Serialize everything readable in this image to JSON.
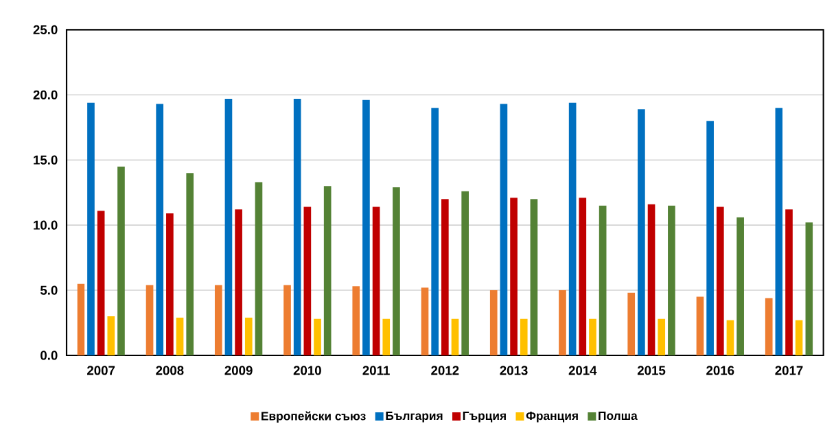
{
  "chart_data": {
    "type": "bar",
    "categories": [
      "2007",
      "2008",
      "2009",
      "2010",
      "2011",
      "2012",
      "2013",
      "2014",
      "2015",
      "2016",
      "2017"
    ],
    "series": [
      {
        "name": "Европейски съюз",
        "color": "#ed7d31",
        "values": [
          5.5,
          5.4,
          5.4,
          5.4,
          5.3,
          5.2,
          5.0,
          5.0,
          4.8,
          4.5,
          4.4
        ]
      },
      {
        "name": "България",
        "color": "#0070c0",
        "values": [
          19.4,
          19.3,
          19.7,
          19.7,
          19.6,
          19.0,
          19.3,
          19.4,
          18.9,
          18.0,
          19.0
        ]
      },
      {
        "name": "Гърция",
        "color": "#c00000",
        "values": [
          11.1,
          10.9,
          11.2,
          11.4,
          11.4,
          12.0,
          12.1,
          12.1,
          11.6,
          11.4,
          11.2
        ]
      },
      {
        "name": "Франция",
        "color": "#ffc000",
        "values": [
          3.0,
          2.9,
          2.9,
          2.8,
          2.8,
          2.8,
          2.8,
          2.8,
          2.8,
          2.7,
          2.7
        ]
      },
      {
        "name": "Полша",
        "color": "#548235",
        "values": [
          14.5,
          14.0,
          13.3,
          13.0,
          12.9,
          12.6,
          12.0,
          11.5,
          11.5,
          10.6,
          10.2
        ]
      }
    ],
    "ylim": [
      0,
      25
    ],
    "yticks": [
      {
        "value": 0,
        "label": "0.0"
      },
      {
        "value": 5,
        "label": "5.0"
      },
      {
        "value": 10,
        "label": "10.0"
      },
      {
        "value": 15,
        "label": "15.0"
      },
      {
        "value": 20,
        "label": "20.0"
      },
      {
        "value": 25,
        "label": "25.0"
      }
    ],
    "grid": "y",
    "legend": "bottom"
  }
}
